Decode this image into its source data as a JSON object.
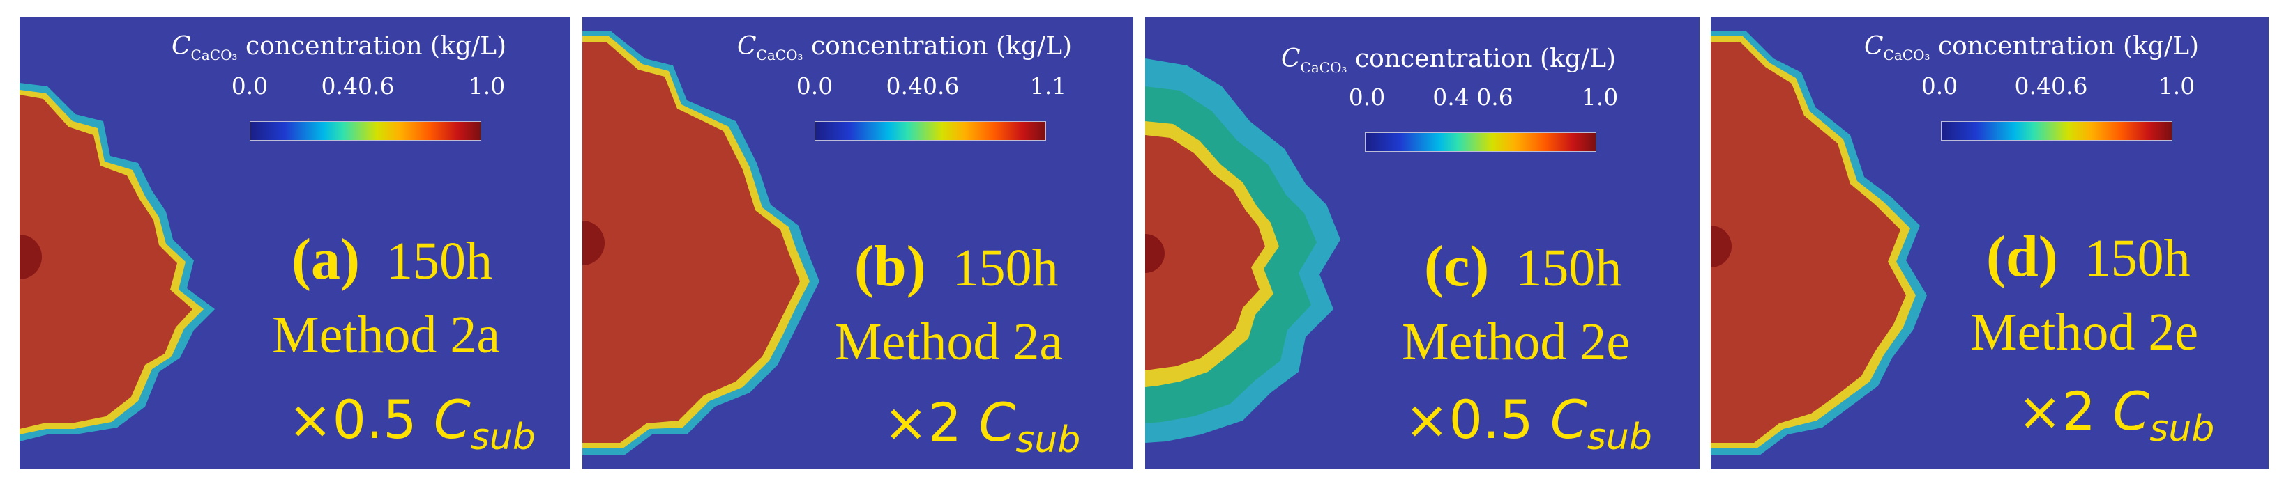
{
  "panels": [
    {
      "tag": "(a)",
      "time": "150h",
      "method": "Method 2a",
      "multiplier": "×0.5",
      "csub_main": "C",
      "csub_sub": "sub",
      "legend": {
        "title_main": "C",
        "title_sub": "CaCO₃",
        "title_rest": "concentration (kg/L)",
        "ticks": [
          "0.0",
          "0.40.6",
          "1.0"
        ]
      }
    },
    {
      "tag": "(b)",
      "time": "150h",
      "method": "Method 2a",
      "multiplier": "×2",
      "csub_main": "C",
      "csub_sub": "sub",
      "legend": {
        "title_main": "C",
        "title_sub": "CaCO₃",
        "title_rest": "concentration (kg/L)",
        "ticks": [
          "0.0",
          "0.40.6",
          "1.1"
        ]
      }
    },
    {
      "tag": "(c)",
      "time": "150h",
      "method": "Method 2e",
      "multiplier": "×0.5",
      "csub_main": "C",
      "csub_sub": "sub",
      "legend": {
        "title_main": "C",
        "title_sub": "CaCO₃",
        "title_rest": "concentration (kg/L)",
        "ticks": [
          "0.0",
          "0.4 0.6",
          "1.0"
        ]
      }
    },
    {
      "tag": "(d)",
      "time": "150h",
      "method": "Method 2e",
      "multiplier": "×2",
      "csub_main": "C",
      "csub_sub": "sub",
      "legend": {
        "title_main": "C",
        "title_sub": "CaCO₃",
        "title_rest": "concentration (kg/L)",
        "ticks": [
          "0.0",
          "0.40.6",
          "1.0"
        ]
      }
    }
  ],
  "colors": {
    "background": "#3a3fa3",
    "text": "#ffe100",
    "core": "#b23a2a"
  }
}
